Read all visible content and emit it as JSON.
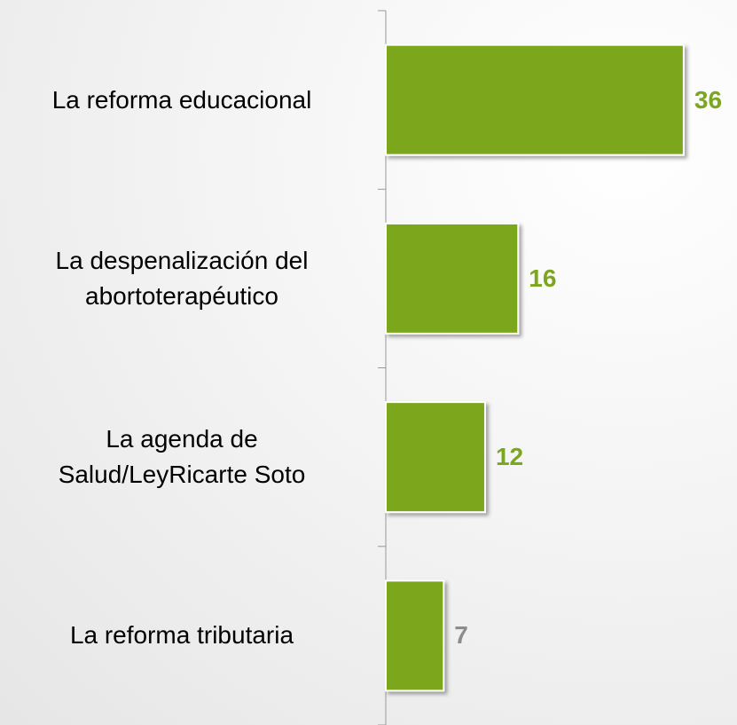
{
  "chart_data": {
    "type": "barh",
    "categories": [
      "La reforma educacional",
      "La despenalización del\nabortoterapéutico",
      "La agenda de\nSalud/LeyRicarte Soto",
      "La reforma tributaria"
    ],
    "values": [
      36,
      16,
      12,
      7
    ],
    "color": "#7ba61f",
    "label_colors": [
      "#7ba61f",
      "#7ba61f",
      "#7ba61f",
      "#8c8c8c"
    ]
  }
}
